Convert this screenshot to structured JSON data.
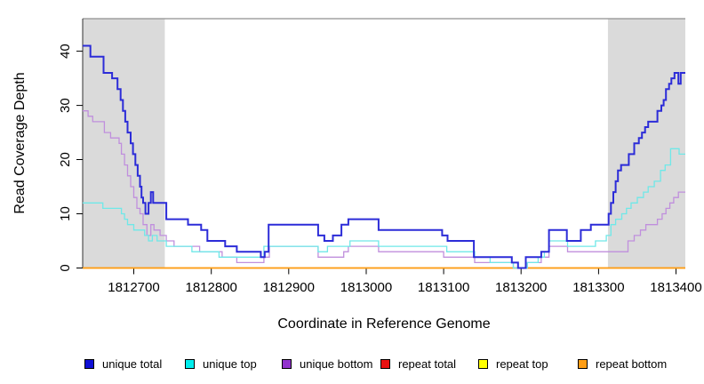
{
  "chart_data": {
    "type": "line",
    "subtype": "step",
    "title": "",
    "xlabel": "Coordinate in Reference Genome",
    "ylabel": "Read Coverage Depth",
    "xlim": [
      1812634,
      1813412
    ],
    "ylim": [
      0,
      46
    ],
    "grid": false,
    "legend_position": "bottom",
    "x_ticks": [
      {
        "value": 1812700,
        "label": "1812700"
      },
      {
        "value": 1812800,
        "label": "1812800"
      },
      {
        "value": 1812900,
        "label": "1812900"
      },
      {
        "value": 1813000,
        "label": "1813000"
      },
      {
        "value": 1813100,
        "label": "1813100"
      },
      {
        "value": 1813200,
        "label": "1813200"
      },
      {
        "value": 1813300,
        "label": "1813300"
      },
      {
        "value": 1813400,
        "label": "1813400"
      }
    ],
    "y_ticks": [
      {
        "value": 0,
        "label": "0"
      },
      {
        "value": 10,
        "label": "10"
      },
      {
        "value": 20,
        "label": "20"
      },
      {
        "value": 30,
        "label": "30"
      },
      {
        "value": 40,
        "label": "40"
      }
    ],
    "shaded_regions": [
      {
        "x0": 1812634,
        "x1": 1812740,
        "color": "#dadada"
      },
      {
        "x0": 1813312,
        "x1": 1813412,
        "color": "#dadada"
      }
    ],
    "frame": {
      "top_line_color": "#8f8f8f",
      "axis_color": "#000000"
    },
    "series": [
      {
        "name": "repeat total",
        "legend_color": "#e81010",
        "line_color": "#e81010",
        "width": 1.3,
        "points": [
          [
            1812634,
            0
          ]
        ]
      },
      {
        "name": "repeat top",
        "legend_color": "#ffff00",
        "line_color": "#ffff00",
        "width": 1.3,
        "points": [
          [
            1812634,
            0
          ]
        ]
      },
      {
        "name": "repeat bottom",
        "legend_color": "#ff9d14",
        "line_color": "#ff9d14",
        "width": 1.7,
        "points": [
          [
            1812634,
            0
          ]
        ]
      },
      {
        "name": "unique bottom",
        "legend_color": "#9232cd",
        "line_color": "#c08fdd",
        "width": 1.3,
        "points": [
          [
            1812634,
            29
          ],
          [
            1812641,
            28
          ],
          [
            1812647,
            27
          ],
          [
            1812662,
            25
          ],
          [
            1812670,
            24
          ],
          [
            1812681,
            23
          ],
          [
            1812684,
            21
          ],
          [
            1812688,
            19
          ],
          [
            1812692,
            17
          ],
          [
            1812696,
            15
          ],
          [
            1812700,
            13
          ],
          [
            1812704,
            11
          ],
          [
            1812708,
            10
          ],
          [
            1812712,
            8
          ],
          [
            1812717,
            6
          ],
          [
            1812722,
            8
          ],
          [
            1812726,
            7
          ],
          [
            1812734,
            6
          ],
          [
            1812742,
            5
          ],
          [
            1812752,
            4
          ],
          [
            1812785,
            3
          ],
          [
            1812814,
            2
          ],
          [
            1812833,
            1
          ],
          [
            1812868,
            2
          ],
          [
            1812875,
            4
          ],
          [
            1812938,
            2
          ],
          [
            1812971,
            3
          ],
          [
            1812977,
            4
          ],
          [
            1813016,
            3
          ],
          [
            1813100,
            2
          ],
          [
            1813140,
            1
          ],
          [
            1813190,
            0
          ],
          [
            1813208,
            1
          ],
          [
            1813226,
            2
          ],
          [
            1813236,
            4
          ],
          [
            1813260,
            3
          ],
          [
            1813338,
            5
          ],
          [
            1813346,
            6
          ],
          [
            1813354,
            7
          ],
          [
            1813361,
            8
          ],
          [
            1813376,
            9
          ],
          [
            1813382,
            10
          ],
          [
            1813387,
            11
          ],
          [
            1813392,
            12
          ],
          [
            1813397,
            13
          ],
          [
            1813403,
            14
          ]
        ]
      },
      {
        "name": "unique top",
        "legend_color": "#00eeee",
        "line_color": "#6fe8e8",
        "width": 1.3,
        "points": [
          [
            1812634,
            12
          ],
          [
            1812660,
            11
          ],
          [
            1812684,
            10
          ],
          [
            1812688,
            9
          ],
          [
            1812692,
            8
          ],
          [
            1812700,
            7
          ],
          [
            1812714,
            6
          ],
          [
            1812719,
            5
          ],
          [
            1812724,
            6
          ],
          [
            1812730,
            5
          ],
          [
            1812742,
            4
          ],
          [
            1812775,
            3
          ],
          [
            1812810,
            2
          ],
          [
            1812868,
            4
          ],
          [
            1812938,
            3
          ],
          [
            1812950,
            4
          ],
          [
            1812979,
            5
          ],
          [
            1813016,
            4
          ],
          [
            1813104,
            3
          ],
          [
            1813140,
            2
          ],
          [
            1813160,
            1
          ],
          [
            1813190,
            0
          ],
          [
            1813208,
            1
          ],
          [
            1813222,
            2
          ],
          [
            1813230,
            3
          ],
          [
            1813236,
            5
          ],
          [
            1813260,
            4
          ],
          [
            1813296,
            5
          ],
          [
            1813310,
            6
          ],
          [
            1813316,
            8
          ],
          [
            1813322,
            9
          ],
          [
            1813330,
            10
          ],
          [
            1813336,
            11
          ],
          [
            1813342,
            12
          ],
          [
            1813350,
            13
          ],
          [
            1813358,
            14
          ],
          [
            1813364,
            15
          ],
          [
            1813372,
            16
          ],
          [
            1813380,
            18
          ],
          [
            1813386,
            19
          ],
          [
            1813393,
            22
          ],
          [
            1813404,
            21
          ]
        ]
      },
      {
        "name": "unique total",
        "legend_color": "#0f0fd6",
        "line_color": "#2c2cd8",
        "width": 2,
        "points": [
          [
            1812634,
            41
          ],
          [
            1812644,
            39
          ],
          [
            1812661,
            36
          ],
          [
            1812672,
            35
          ],
          [
            1812679,
            33
          ],
          [
            1812683,
            31
          ],
          [
            1812686,
            29
          ],
          [
            1812689,
            27
          ],
          [
            1812692,
            25
          ],
          [
            1812696,
            23
          ],
          [
            1812699,
            21
          ],
          [
            1812702,
            19
          ],
          [
            1812705,
            17
          ],
          [
            1812708,
            15
          ],
          [
            1812710,
            13
          ],
          [
            1812712,
            12
          ],
          [
            1812715,
            10
          ],
          [
            1812719,
            12
          ],
          [
            1812722,
            14
          ],
          [
            1812725,
            12
          ],
          [
            1812742,
            9
          ],
          [
            1812770,
            8
          ],
          [
            1812787,
            7
          ],
          [
            1812795,
            5
          ],
          [
            1812818,
            4
          ],
          [
            1812833,
            3
          ],
          [
            1812864,
            2
          ],
          [
            1812869,
            3
          ],
          [
            1812874,
            8
          ],
          [
            1812938,
            6
          ],
          [
            1812946,
            5
          ],
          [
            1812957,
            6
          ],
          [
            1812968,
            8
          ],
          [
            1812977,
            9
          ],
          [
            1813016,
            7
          ],
          [
            1813098,
            6
          ],
          [
            1813105,
            5
          ],
          [
            1813139,
            2
          ],
          [
            1813188,
            1
          ],
          [
            1813196,
            0
          ],
          [
            1813206,
            2
          ],
          [
            1813226,
            3
          ],
          [
            1813236,
            7
          ],
          [
            1813259,
            5
          ],
          [
            1813277,
            7
          ],
          [
            1813290,
            8
          ],
          [
            1813313,
            10
          ],
          [
            1813316,
            12
          ],
          [
            1813319,
            14
          ],
          [
            1813322,
            16
          ],
          [
            1813325,
            18
          ],
          [
            1813329,
            19
          ],
          [
            1813339,
            21
          ],
          [
            1813346,
            23
          ],
          [
            1813352,
            24
          ],
          [
            1813356,
            25
          ],
          [
            1813360,
            26
          ],
          [
            1813364,
            27
          ],
          [
            1813376,
            29
          ],
          [
            1813381,
            30
          ],
          [
            1813384,
            31
          ],
          [
            1813387,
            33
          ],
          [
            1813391,
            34
          ],
          [
            1813394,
            35
          ],
          [
            1813398,
            36
          ],
          [
            1813403,
            34
          ],
          [
            1813406,
            36
          ]
        ]
      }
    ],
    "legend": {
      "order": [
        "unique total",
        "unique top",
        "unique bottom",
        "repeat total",
        "repeat top",
        "repeat bottom"
      ]
    }
  }
}
